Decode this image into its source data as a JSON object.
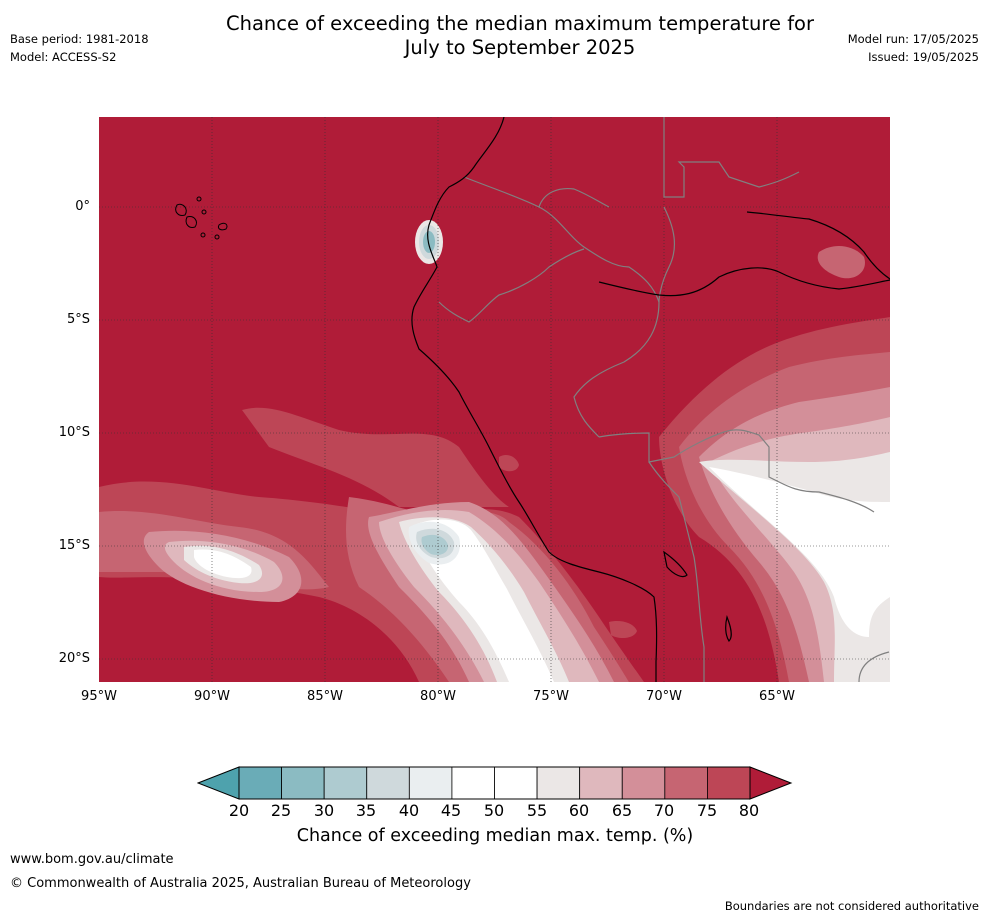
{
  "header": {
    "title_line1": "Chance of exceeding the median maximum temperature for",
    "title_line2": "July to September 2025",
    "base_period": "Base period: 1981-2018",
    "model": "Model: ACCESS-S2",
    "model_run": "Model run: 17/05/2025",
    "issued": "Issued: 19/05/2025"
  },
  "map": {
    "lat_labels": [
      "0°",
      "5°S",
      "10°S",
      "15°S",
      "20°S"
    ],
    "lon_labels": [
      "95°W",
      "90°W",
      "85°W",
      "80°W",
      "75°W",
      "70°W",
      "65°W"
    ],
    "background_color": "#b01c38",
    "coast_color": "#000000",
    "border_color": "#808080"
  },
  "colorbar": {
    "ticks": [
      "20",
      "25",
      "30",
      "35",
      "40",
      "45",
      "50",
      "55",
      "60",
      "65",
      "70",
      "75",
      "80"
    ],
    "colors": [
      "#6aacb7",
      "#8bbbc2",
      "#aecbd0",
      "#cfd9dc",
      "#eaeef0",
      "#ffffff",
      "#ffffff",
      "#ebe7e6",
      "#dfb8bd",
      "#d38f99",
      "#c66572",
      "#bd4656"
    ],
    "under_color": "#4ea2ad",
    "over_color": "#b01c38",
    "title": "Chance of exceeding median max. temp. (%)"
  },
  "footer": {
    "website": "www.bom.gov.au/climate",
    "copyright": "© Commonwealth of Australia 2025, Australian Bureau of Meteorology",
    "disclaimer": "Boundaries are not considered authoritative"
  }
}
